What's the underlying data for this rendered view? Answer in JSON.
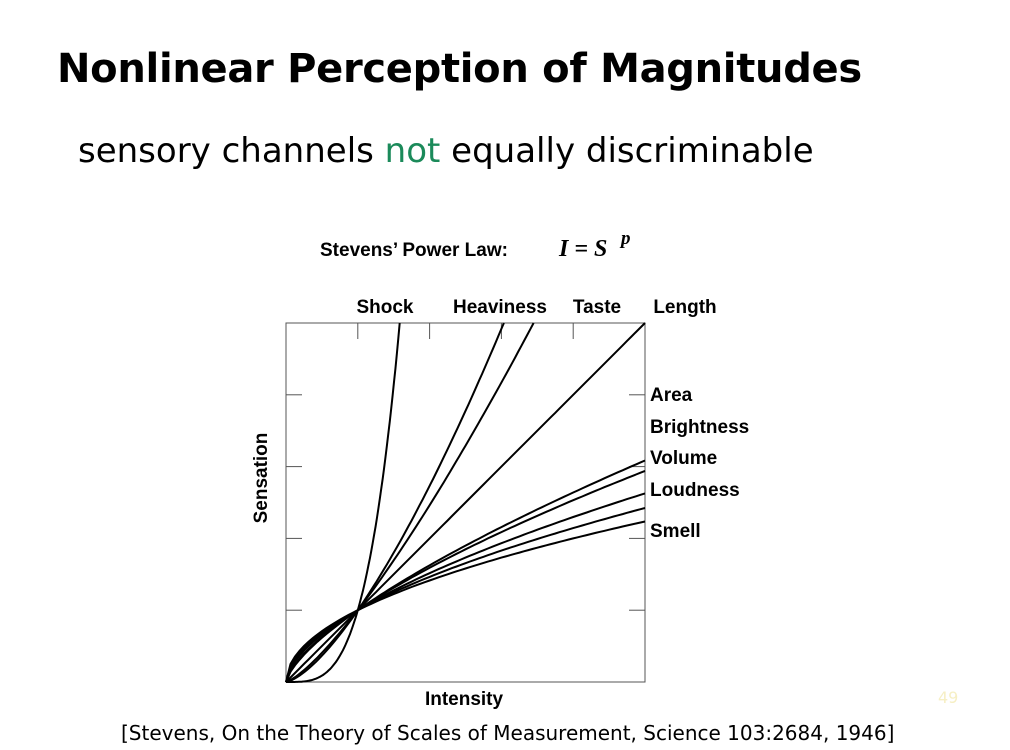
{
  "slide": {
    "title": "Nonlinear Perception of Magnitudes",
    "subtitle_before": "sensory channels ",
    "subtitle_highlight": "not",
    "subtitle_after": " equally discriminable",
    "highlight_color": "#1b8a5a",
    "citation": "[Stevens, On the Theory of Scales of Measurement, Science 103:2684, 1946]",
    "page_number": "49"
  },
  "chart_data": {
    "type": "line",
    "title_text": "Stevens’ Power Law:",
    "formula_lhs": "I = S",
    "formula_exponent": "p",
    "xlabel": "Intensity",
    "ylabel": "Sensation",
    "xlim": [
      0,
      5
    ],
    "ylim": [
      0,
      5
    ],
    "grid": false,
    "axis_ticks": [
      1,
      2,
      3,
      4
    ],
    "line_color": "#000000",
    "series": [
      {
        "name": "Shock",
        "exponent": 3.5,
        "label_position": "top"
      },
      {
        "name": "Heaviness",
        "exponent": 1.45,
        "label_position": "top"
      },
      {
        "name": "Taste",
        "exponent": 1.3,
        "label_position": "top"
      },
      {
        "name": "Length",
        "exponent": 1.0,
        "label_position": "top"
      },
      {
        "name": "Area",
        "exponent": 0.7,
        "label_position": "right"
      },
      {
        "name": "Brightness",
        "exponent": 0.5,
        "label_position": "right"
      },
      {
        "name": "Volume",
        "exponent": 0.6,
        "label_position": "right"
      },
      {
        "name": "Loudness",
        "exponent": 0.67,
        "label_position": "right"
      },
      {
        "name": "Smell",
        "exponent": 0.55,
        "label_position": "right"
      }
    ]
  }
}
